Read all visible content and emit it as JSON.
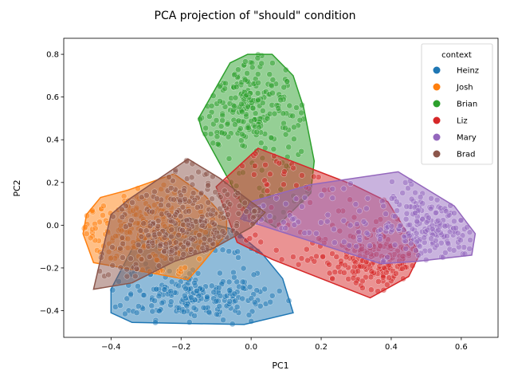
{
  "chart_data": {
    "type": "scatter",
    "title": "PCA projection of \"should\" condition",
    "xlabel": "PC1",
    "ylabel": "PC2",
    "xlim": [
      -0.535,
      0.705
    ],
    "ylim": [
      -0.525,
      0.875
    ],
    "xticks": [
      -0.4,
      -0.2,
      0.0,
      0.2,
      0.4,
      0.6
    ],
    "xtick_labels": [
      "−0.4",
      "−0.2",
      "0.0",
      "0.2",
      "0.4",
      "0.6"
    ],
    "yticks": [
      -0.4,
      -0.2,
      0.0,
      0.2,
      0.4,
      0.6,
      0.8
    ],
    "ytick_labels": [
      "−0.4",
      "−0.2",
      "0.0",
      "0.2",
      "0.4",
      "0.6",
      "0.8"
    ],
    "grid": false,
    "legend_title": "context",
    "legend_position": "top-right",
    "series": [
      {
        "name": "Heinz",
        "color": "#1f77b4",
        "center": [
          -0.17,
          -0.34
        ],
        "spread": [
          0.1,
          0.05
        ],
        "hull": [
          [
            -0.33,
            -0.08
          ],
          [
            -0.18,
            0.035
          ],
          [
            -0.05,
            -0.02
          ],
          [
            0.03,
            -0.13
          ],
          [
            0.09,
            -0.25
          ],
          [
            0.12,
            -0.41
          ],
          [
            -0.02,
            -0.465
          ],
          [
            -0.34,
            -0.455
          ],
          [
            -0.4,
            -0.41
          ],
          [
            -0.4,
            -0.3
          ]
        ]
      },
      {
        "name": "Josh",
        "color": "#ff7f0e",
        "center": [
          -0.32,
          -0.02
        ],
        "spread": [
          0.09,
          0.09
        ],
        "hull": [
          [
            -0.43,
            0.13
          ],
          [
            -0.35,
            0.165
          ],
          [
            -0.22,
            0.24
          ],
          [
            -0.13,
            0.135
          ],
          [
            -0.07,
            0.025
          ],
          [
            -0.07,
            -0.04
          ],
          [
            -0.14,
            -0.18
          ],
          [
            -0.18,
            -0.255
          ],
          [
            -0.45,
            -0.175
          ],
          [
            -0.48,
            -0.04
          ],
          [
            -0.47,
            0.05
          ]
        ]
      },
      {
        "name": "Brian",
        "color": "#2ca02c",
        "center": [
          -0.01,
          0.56
        ],
        "spread": [
          0.07,
          0.11
        ],
        "hull": [
          [
            -0.06,
            0.76
          ],
          [
            -0.01,
            0.8
          ],
          [
            0.06,
            0.8
          ],
          [
            0.12,
            0.7
          ],
          [
            0.15,
            0.55
          ],
          [
            0.18,
            0.3
          ],
          [
            0.17,
            0.15
          ],
          [
            0.07,
            -0.01
          ],
          [
            -0.02,
            0.08
          ],
          [
            -0.14,
            0.44
          ],
          [
            -0.15,
            0.5
          ]
        ]
      },
      {
        "name": "Liz",
        "color": "#d62728",
        "center": [
          0.36,
          -0.18
        ],
        "spread": [
          0.08,
          0.08
        ],
        "hull": [
          [
            0.02,
            0.36
          ],
          [
            0.29,
            0.19
          ],
          [
            0.39,
            0.11
          ],
          [
            0.47,
            -0.1
          ],
          [
            0.48,
            -0.14
          ],
          [
            0.45,
            -0.24
          ],
          [
            0.34,
            -0.34
          ],
          [
            0.06,
            -0.16
          ],
          [
            -0.04,
            -0.08
          ],
          [
            -0.1,
            0.18
          ]
        ]
      },
      {
        "name": "Mary",
        "color": "#9467bd",
        "center": [
          0.5,
          0.0
        ],
        "spread": [
          0.08,
          0.075
        ],
        "hull": [
          [
            0.0,
            0.11
          ],
          [
            0.17,
            0.19
          ],
          [
            0.42,
            0.25
          ],
          [
            0.58,
            0.09
          ],
          [
            0.64,
            -0.04
          ],
          [
            0.63,
            -0.14
          ],
          [
            0.47,
            -0.17
          ],
          [
            0.37,
            -0.18
          ],
          [
            -0.03,
            0.03
          ]
        ]
      },
      {
        "name": "Brad",
        "color": "#8c564b",
        "center": [
          -0.18,
          0.0
        ],
        "spread": [
          0.1,
          0.11
        ],
        "hull": [
          [
            -0.18,
            0.31
          ],
          [
            -0.09,
            0.22
          ],
          [
            0.04,
            0.06
          ],
          [
            0.0,
            -0.01
          ],
          [
            -0.11,
            -0.11
          ],
          [
            -0.22,
            -0.17
          ],
          [
            -0.34,
            -0.27
          ],
          [
            -0.45,
            -0.3
          ],
          [
            -0.4,
            0.05
          ],
          [
            -0.35,
            0.12
          ]
        ]
      }
    ]
  }
}
